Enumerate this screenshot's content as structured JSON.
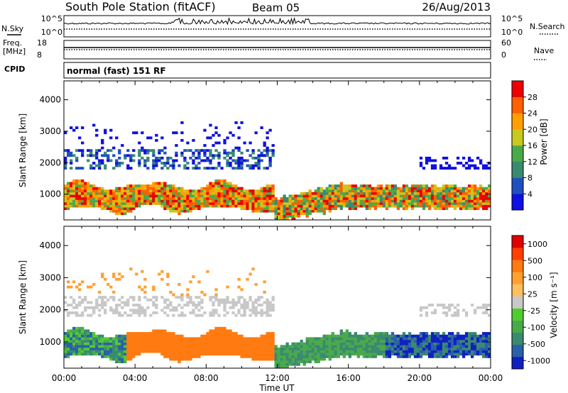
{
  "header": {
    "title": "South Pole Station (fitACF)",
    "beam": "Beam 05",
    "date": "26/Aug/2013"
  },
  "strips": {
    "nsky_label": "N.Sky",
    "nsearch_label": "N.Search",
    "noise_ticks": [
      "10^5",
      "10^0"
    ],
    "freq_label": "Freq.",
    "freq_unit": "[MHz]",
    "freq_ticks": [
      "18",
      "8"
    ],
    "nave_label": "Nave",
    "nave_ticks": [
      "60",
      "0"
    ],
    "cpid_label": "CPID",
    "cpid_value": "normal (fast) 151 RF"
  },
  "chart_data": [
    {
      "type": "heatmap",
      "panel": "power",
      "ylabel": "Slant Range [km]",
      "xlabel": "Time UT",
      "x_ticks": [
        "00:00",
        "04:00",
        "08:00",
        "12:00",
        "16:00",
        "20:00",
        "00:00"
      ],
      "xlim_hours": [
        0,
        24
      ],
      "y_ticks": [
        1000,
        2000,
        3000,
        4000
      ],
      "ylim_km": [
        180,
        4600
      ],
      "colorbar": {
        "label": "Power [dB]",
        "ticks": [
          "4",
          "8",
          "12",
          "16",
          "20",
          "24",
          "28"
        ],
        "colors": [
          "#1010e0",
          "#2050c0",
          "#3a8a70",
          "#4aaa4a",
          "#c8c820",
          "#ffa000",
          "#ff6000",
          "#ee0000"
        ]
      }
    },
    {
      "type": "heatmap",
      "panel": "velocity",
      "ylabel": "Slant Range [km]",
      "xlabel": "Time UT",
      "x_ticks": [
        "00:00",
        "04:00",
        "08:00",
        "12:00",
        "16:00",
        "20:00",
        "00:00"
      ],
      "xlim_hours": [
        0,
        24
      ],
      "y_ticks": [
        1000,
        2000,
        3000,
        4000
      ],
      "ylim_km": [
        180,
        4600
      ],
      "colorbar": {
        "label": "Velocity [m s⁻¹]",
        "ticks": [
          "1000",
          "500",
          "100",
          "25",
          "-25",
          "-100",
          "-500",
          "-1000"
        ],
        "colors": [
          "#1020c0",
          "#2a60a8",
          "#3a8a70",
          "#4aaa4a",
          "#50cc30",
          "#c8c8c8",
          "#ffc060",
          "#ffa030",
          "#ff7a10",
          "#ff4000",
          "#e00000"
        ]
      }
    }
  ]
}
